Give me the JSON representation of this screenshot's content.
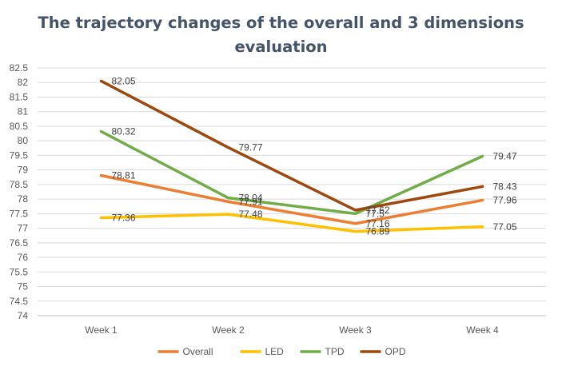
{
  "chart_data": {
    "type": "line",
    "title_lines": [
      "The trajectory changes of the overall and 3 dimensions",
      "evaluation"
    ],
    "categories": [
      "Week 1",
      "Week 2",
      "Week 3",
      "Week 4"
    ],
    "ylim": [
      74,
      82.5
    ],
    "ystep": 0.5,
    "grid": true,
    "legend_position": "bottom",
    "series": [
      {
        "name": "Overall",
        "color": "#ed7d31",
        "values": [
          78.81,
          77.91,
          77.16,
          77.96
        ],
        "labels": [
          "78.81",
          "77.91",
          "77.16",
          "77.96"
        ]
      },
      {
        "name": "LED",
        "color": "#ffc000",
        "values": [
          77.36,
          77.48,
          76.89,
          77.05
        ],
        "labels": [
          "77.36",
          "77.48",
          "76.89",
          "77.05"
        ]
      },
      {
        "name": "TPD",
        "color": "#70ad47",
        "values": [
          80.32,
          78.04,
          77.5,
          79.47
        ],
        "labels": [
          "80.32",
          "78.04",
          "77.5",
          "79.47"
        ]
      },
      {
        "name": "OPD",
        "color": "#9e480e",
        "values": [
          82.05,
          79.77,
          77.62,
          78.43
        ],
        "labels": [
          "82.05",
          "79.77",
          "77.62",
          "78.43"
        ]
      }
    ]
  }
}
